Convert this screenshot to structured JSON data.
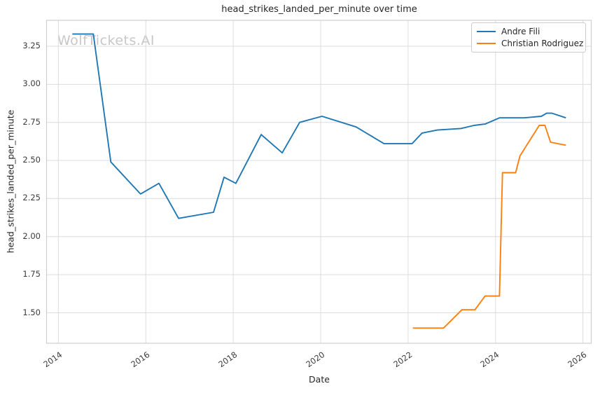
{
  "watermark": {
    "text": "WolfTickets.AI"
  },
  "chart_data": {
    "type": "line",
    "title": "head_strikes_landed_per_minute over time",
    "xlabel": "Date",
    "ylabel": "head_strikes_landed_per_minute",
    "grid": true,
    "legend_position": "top-right",
    "xlim": [
      2013.73,
      2026.19
    ],
    "ylim": [
      1.3,
      3.42
    ],
    "x_ticks": [
      {
        "value": 2014,
        "label": "2014"
      },
      {
        "value": 2016,
        "label": "2016"
      },
      {
        "value": 2018,
        "label": "2018"
      },
      {
        "value": 2020,
        "label": "2020"
      },
      {
        "value": 2022,
        "label": "2022"
      },
      {
        "value": 2024,
        "label": "2024"
      },
      {
        "value": 2026,
        "label": "2026"
      }
    ],
    "y_ticks": [
      {
        "value": 1.5,
        "label": "1.50"
      },
      {
        "value": 1.75,
        "label": "1.75"
      },
      {
        "value": 2.0,
        "label": "2.00"
      },
      {
        "value": 2.25,
        "label": "2.25"
      },
      {
        "value": 2.5,
        "label": "2.50"
      },
      {
        "value": 2.75,
        "label": "2.75"
      },
      {
        "value": 3.0,
        "label": "3.00"
      },
      {
        "value": 3.25,
        "label": "3.25"
      }
    ],
    "series": [
      {
        "name": "Andre Fili",
        "color": "#1f77b4",
        "x": [
          2014.32,
          2014.8,
          2015.2,
          2015.88,
          2016.3,
          2016.75,
          2017.55,
          2017.79,
          2018.06,
          2018.64,
          2019.12,
          2019.52,
          2020.03,
          2020.81,
          2021.45,
          2022.09,
          2022.32,
          2022.67,
          2023.21,
          2023.51,
          2023.77,
          2024.09,
          2024.65,
          2025.05,
          2025.17,
          2025.29,
          2025.61
        ],
        "y": [
          3.33,
          3.33,
          2.49,
          2.28,
          2.35,
          2.12,
          2.16,
          2.39,
          2.35,
          2.67,
          2.55,
          2.75,
          2.79,
          2.72,
          2.61,
          2.61,
          2.68,
          2.7,
          2.71,
          2.73,
          2.74,
          2.78,
          2.78,
          2.79,
          2.81,
          2.81,
          2.78
        ]
      },
      {
        "name": "Christian Rodriguez",
        "color": "#ff7f0e",
        "x": [
          2022.11,
          2022.81,
          2023.23,
          2023.53,
          2023.76,
          2024.09,
          2024.16,
          2024.46,
          2024.56,
          2025.0,
          2025.13,
          2025.26,
          2025.61
        ],
        "y": [
          1.4,
          1.4,
          1.52,
          1.52,
          1.61,
          1.61,
          2.42,
          2.42,
          2.53,
          2.73,
          2.73,
          2.62,
          2.6
        ]
      }
    ],
    "colors": {
      "grid": "#dcdcdc",
      "spine": "#cfcfcf",
      "text": "#262626",
      "tick_text": "#3a3a3a",
      "watermark": "#c7c7c7",
      "background": "#ffffff"
    }
  }
}
